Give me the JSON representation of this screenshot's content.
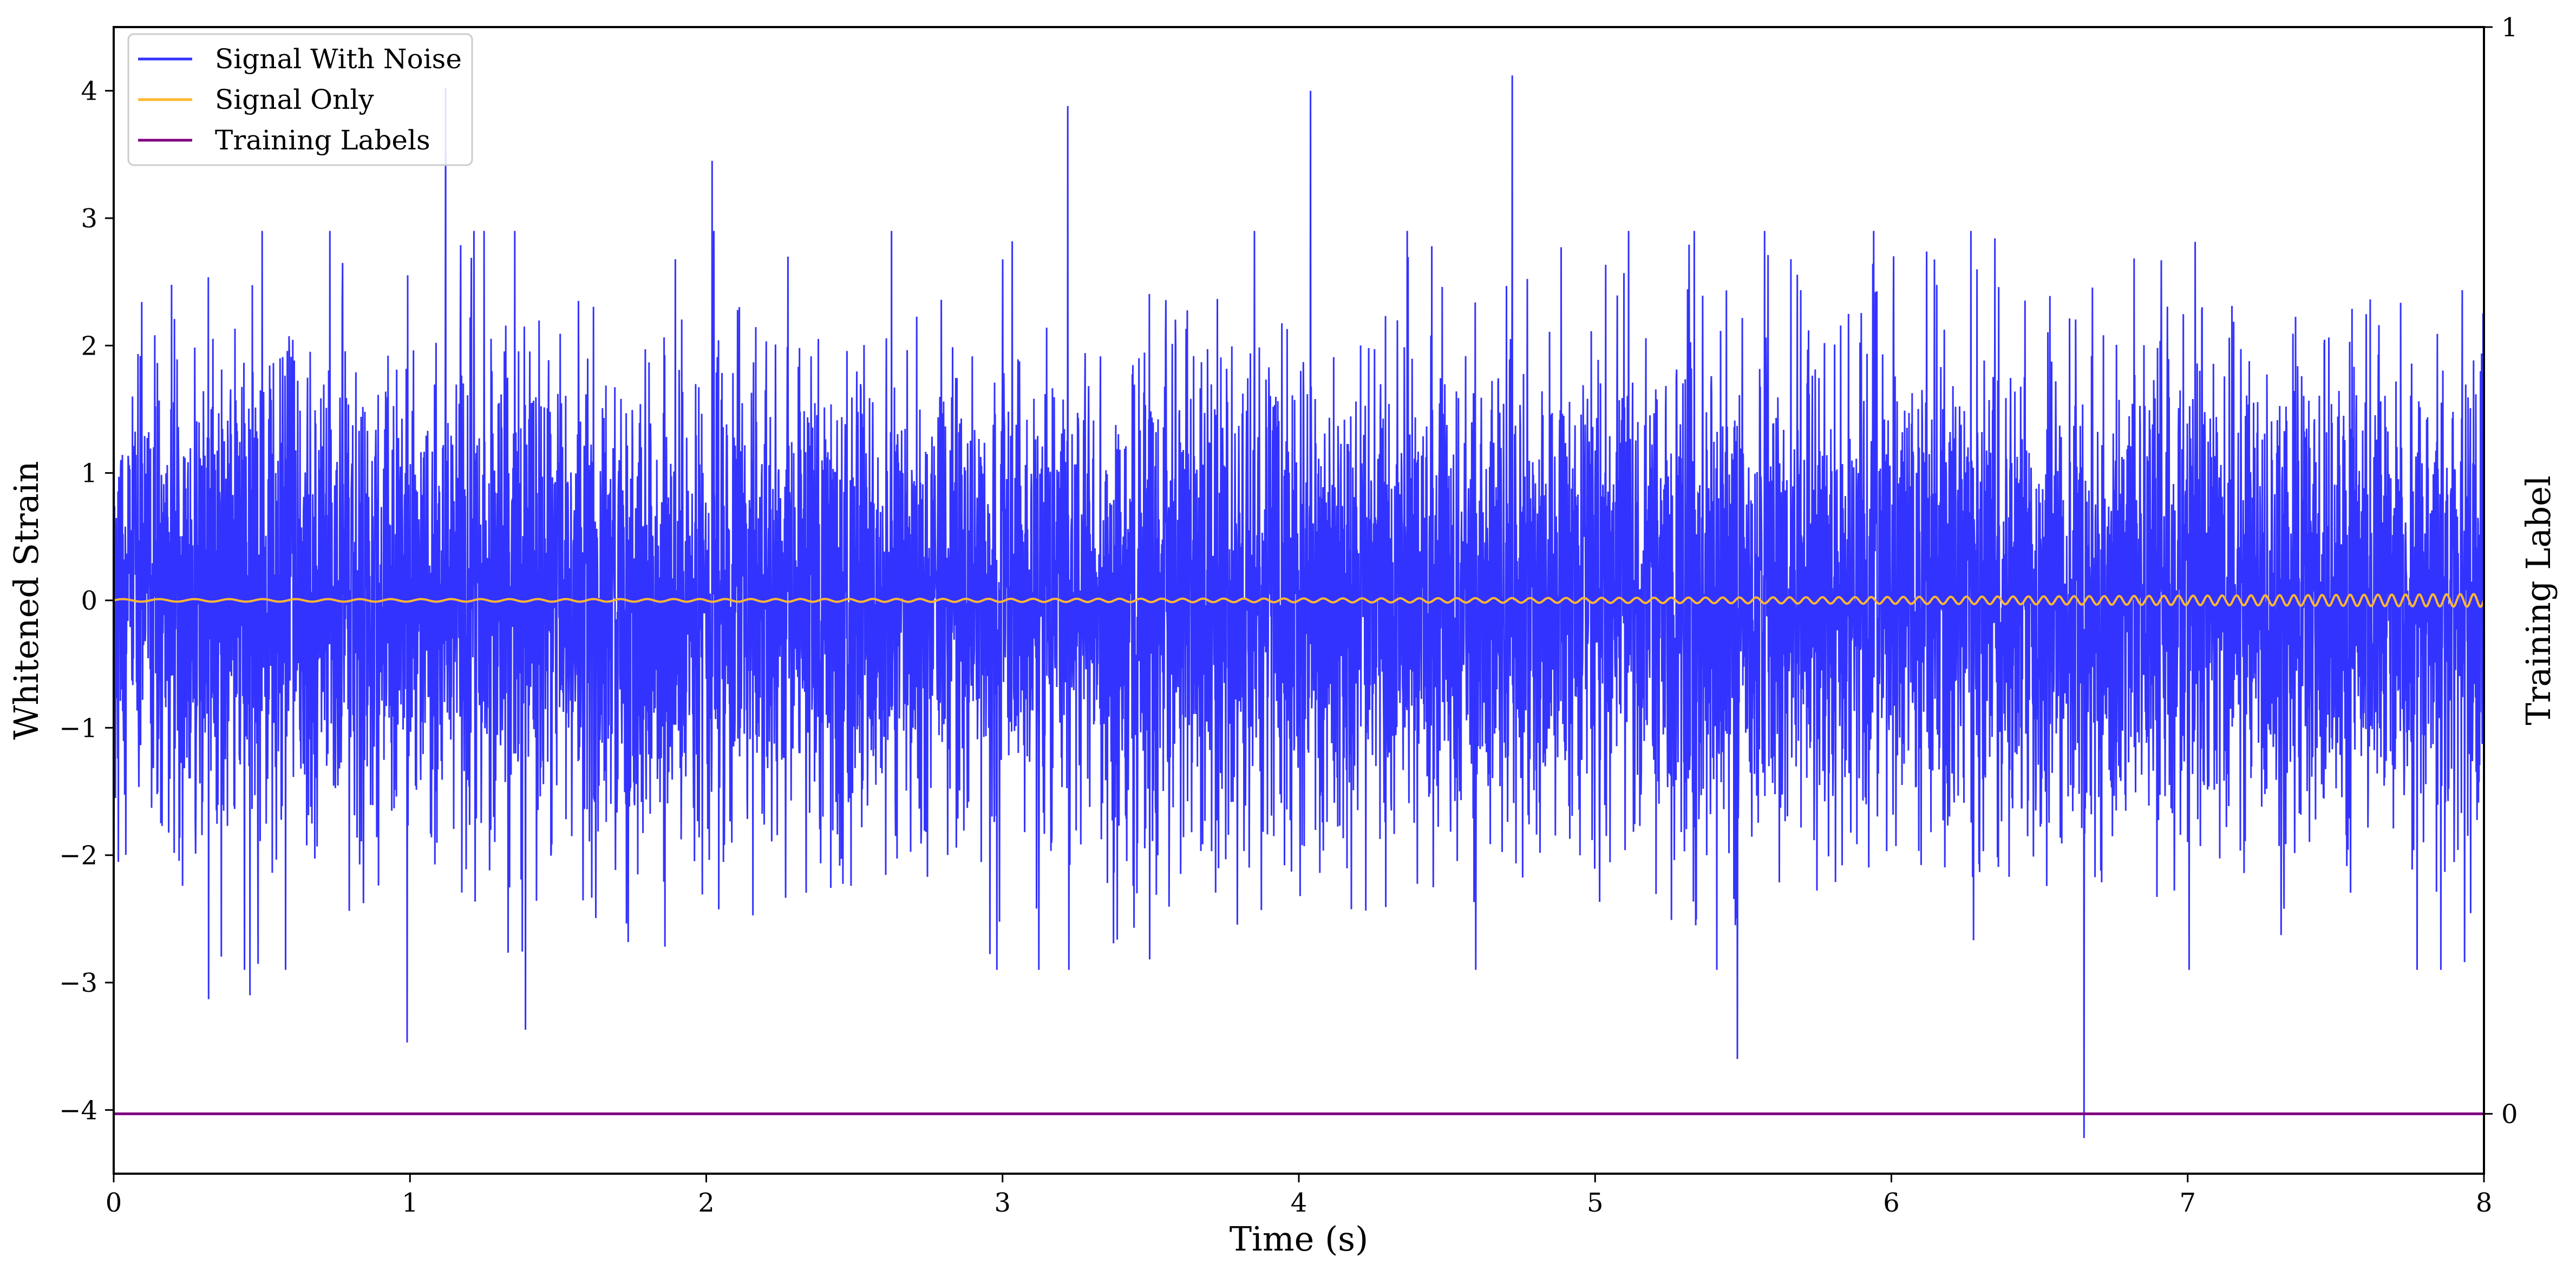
{
  "chart_data": {
    "type": "line",
    "xlabel": "Time (s)",
    "ylabel": "Whitened Strain",
    "y2label": "Training Label",
    "xlim": [
      0,
      8
    ],
    "ylim": [
      -4.5,
      4.5
    ],
    "y2lim": [
      0,
      1
    ],
    "x_ticks": [
      0,
      1,
      2,
      3,
      4,
      5,
      6,
      7,
      8
    ],
    "y_ticks": [
      -4,
      -3,
      -2,
      -1,
      0,
      1,
      2,
      3,
      4
    ],
    "y2_ticks": [
      0,
      1
    ],
    "x_tick_labels": [
      "0",
      "1",
      "2",
      "3",
      "4",
      "5",
      "6",
      "7",
      "8"
    ],
    "y_tick_labels": [
      "−4",
      "−3",
      "−2",
      "−1",
      "0",
      "1",
      "2",
      "3",
      "4"
    ],
    "y2_tick_labels": [
      "0",
      "1"
    ],
    "grid": false,
    "legend_position": "top-left",
    "series": [
      {
        "name": "Signal With Noise",
        "color": "#3333ff",
        "description_kind": "noise",
        "sample_rate": 1024,
        "noise_std": 0.95,
        "peaks": [
          {
            "x": 1.12,
            "y": 4.02
          },
          {
            "x": 4.72,
            "y": 4.12
          },
          {
            "x": 4.04,
            "y": 4.0
          },
          {
            "x": 3.22,
            "y": 3.88
          },
          {
            "x": 2.02,
            "y": 3.45
          },
          {
            "x": 0.99,
            "y": -3.47
          },
          {
            "x": 1.39,
            "y": -3.37
          },
          {
            "x": 5.48,
            "y": -3.6
          },
          {
            "x": 6.65,
            "y": -4.22
          },
          {
            "x": 0.32,
            "y": -3.13
          },
          {
            "x": 0.46,
            "y": -3.1
          }
        ]
      },
      {
        "name": "Signal Only",
        "color": "#ffb733",
        "description_kind": "chirp",
        "amplitude_start": 0.01,
        "amplitude_end": 0.05,
        "freq_start": 8,
        "freq_end": 22
      },
      {
        "name": "Training Labels",
        "color": "#800080",
        "axis": "right",
        "x": [
          0,
          8
        ],
        "values": [
          0,
          0
        ]
      }
    ]
  }
}
